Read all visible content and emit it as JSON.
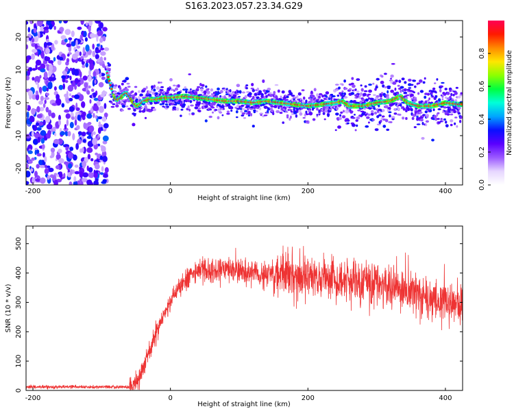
{
  "title": "S163.2023.057.23.34.G29",
  "colors": {
    "snr_line": "#ee3333",
    "frame": "#000000",
    "colorbar_stops": [
      "#ffffff",
      "#e6d6ff",
      "#9b59ff",
      "#5a00ff",
      "#0a10ff",
      "#00a6ff",
      "#00ffd9",
      "#00ff40",
      "#8dff00",
      "#ffe600",
      "#ff8a00",
      "#ff1a00",
      "#ff0055"
    ]
  },
  "chart_data": [
    {
      "id": "spectrogram",
      "type": "heatmap",
      "title": "",
      "xlabel": "Height of straight line (km)",
      "ylabel": "Frequency (Hz)",
      "xlim": [
        -210,
        425
      ],
      "ylim": [
        -25,
        25
      ],
      "xticks": [
        -200,
        0,
        200,
        400
      ],
      "yticks": [
        -20,
        -10,
        0,
        10,
        20
      ],
      "colorbar": {
        "label": "Normalized spectral amplitude",
        "range": [
          0,
          1
        ],
        "ticks": [
          0.0,
          0.2,
          0.4,
          0.6,
          0.8
        ]
      },
      "noise_band_x": [
        -210,
        -92
      ],
      "ridge": {
        "x": [
          -92,
          -88,
          -84,
          -80,
          -76,
          -72,
          -68,
          -64,
          -60,
          -56,
          -52,
          -48,
          -44,
          -40,
          -30,
          -20,
          -10,
          0,
          20,
          40,
          60,
          80,
          100,
          120,
          140,
          160,
          180,
          200,
          220,
          240,
          250,
          260,
          280,
          300,
          320,
          335,
          345,
          360,
          380,
          400,
          420
        ],
        "y": [
          9,
          6,
          3,
          1,
          1,
          1.5,
          2.5,
          3,
          2,
          0.5,
          -0.5,
          -1,
          -0.5,
          0.5,
          1,
          1,
          1.5,
          1.5,
          2,
          1.5,
          1,
          0.5,
          0.5,
          0,
          0.5,
          0,
          -0.5,
          -1,
          -0.5,
          0,
          0.5,
          -1,
          -1,
          0,
          0.5,
          2,
          0,
          -1,
          -1,
          0,
          -0.5
        ]
      }
    },
    {
      "id": "snr",
      "type": "line",
      "title": "",
      "xlabel": "Height of straight line (km)",
      "ylabel": "SNR (10 * v/v)",
      "xlim": [
        -210,
        425
      ],
      "ylim": [
        0,
        560
      ],
      "xticks": [
        -200,
        0,
        200,
        400
      ],
      "yticks": [
        0,
        100,
        200,
        300,
        400,
        500
      ],
      "series": [
        {
          "name": "",
          "x": [
            -210,
            -60,
            -55,
            -50,
            -45,
            -40,
            -30,
            -20,
            -10,
            0,
            10,
            20,
            30,
            40,
            60,
            80,
            100,
            150,
            200,
            250,
            270,
            300,
            350,
            400,
            425
          ],
          "y": [
            12,
            12,
            15,
            25,
            40,
            80,
            140,
            200,
            260,
            300,
            340,
            370,
            395,
            405,
            410,
            410,
            405,
            395,
            390,
            380,
            370,
            355,
            330,
            300,
            290
          ]
        }
      ]
    }
  ]
}
